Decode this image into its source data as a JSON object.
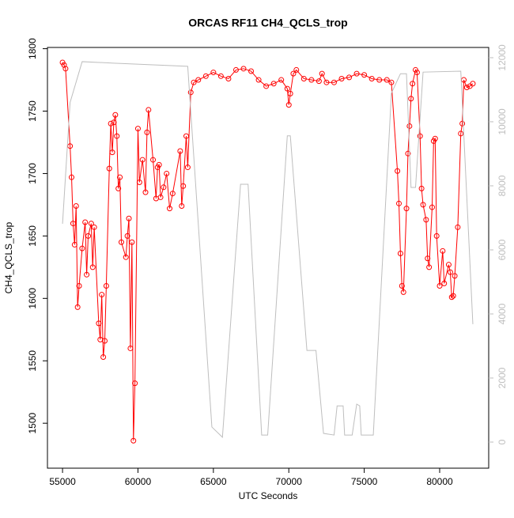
{
  "chart_data": {
    "type": "line",
    "title": "ORCAS RF11 CH4_QCLS_trop",
    "xlabel": "UTC Seconds",
    "ylabel": "CH4_QCLS_trop",
    "xlim": [
      54000,
      83250
    ],
    "xticks": [
      55000,
      60000,
      65000,
      70000,
      75000,
      80000
    ],
    "ylim": [
      1464,
      1801
    ],
    "yticks": [
      1500,
      1550,
      1600,
      1650,
      1700,
      1750,
      1800
    ],
    "y2lim": [
      -815,
      12320
    ],
    "y2ticks": [
      0,
      2000,
      4000,
      6000,
      8000,
      10000,
      12000
    ],
    "y2color": "#bebebe",
    "series": [
      {
        "color": "#ff0000",
        "marker": "circle",
        "x": [
          55000,
          55100,
          55200,
          55500,
          55600,
          55700,
          55800,
          55900,
          56000,
          56100,
          56300,
          56500,
          56600,
          56700,
          56900,
          57000,
          57100,
          57400,
          57500,
          57600,
          57700,
          57800,
          57900,
          58100,
          58200,
          58300,
          58400,
          58500,
          58600,
          58700,
          58800,
          58900,
          59200,
          59300,
          59400,
          59500,
          59600,
          59700,
          59800,
          60000,
          60100,
          60300,
          60500,
          60600,
          60700,
          61000,
          61200,
          61300,
          61400,
          61500,
          61700,
          61900,
          62100,
          62300,
          62800,
          62900,
          63000,
          63200,
          63300,
          63500,
          63700,
          64000,
          64500,
          65000,
          65500,
          66000,
          66500,
          67000,
          67500,
          68000,
          68500,
          69000,
          69500,
          69900,
          70000,
          70100,
          70300,
          70500,
          71000,
          71500,
          72000,
          72200,
          72500,
          73000,
          73500,
          74000,
          74500,
          75000,
          75500,
          76000,
          76500,
          76800,
          77200,
          77300,
          77400,
          77500,
          77600,
          77800,
          77900,
          78000,
          78100,
          78200,
          78400,
          78500,
          78700,
          78800,
          78900,
          79100,
          79200,
          79300,
          79500,
          79600,
          79700,
          79800,
          80000,
          80200,
          80300,
          80600,
          80700,
          80800,
          80900,
          81000,
          81200,
          81400,
          81500,
          81600,
          81800,
          82000,
          82200
        ],
        "values": [
          1789,
          1787,
          1784,
          1722,
          1697,
          1660,
          1643,
          1674,
          1593,
          1610,
          1640,
          1661,
          1619,
          1650,
          1660,
          1625,
          1657,
          1580,
          1567,
          1603,
          1553,
          1566,
          1610,
          1704,
          1740,
          1717,
          1741,
          1747,
          1730,
          1688,
          1697,
          1645,
          1633,
          1650,
          1664,
          1560,
          1645,
          1486,
          1532,
          1736,
          1693,
          1711,
          1685,
          1733,
          1751,
          1711,
          1680,
          1705,
          1707,
          1681,
          1689,
          1700,
          1672,
          1684,
          1718,
          1674,
          1690,
          1730,
          1705,
          1765,
          1773,
          1775,
          1778,
          1781,
          1778,
          1776,
          1783,
          1784,
          1782,
          1775,
          1770,
          1772,
          1775,
          1768,
          1755,
          1764,
          1780,
          1783,
          1776,
          1775,
          1774,
          1780,
          1773,
          1773,
          1776,
          1777,
          1780,
          1779,
          1776,
          1775,
          1775,
          1773,
          1702,
          1676,
          1636,
          1610,
          1605,
          1672,
          1716,
          1738,
          1760,
          1772,
          1783,
          1781,
          1730,
          1688,
          1675,
          1663,
          1632,
          1625,
          1673,
          1726,
          1728,
          1650,
          1610,
          1638,
          1612,
          1627,
          1621,
          1601,
          1602,
          1618,
          1657,
          1732,
          1740,
          1775,
          1769,
          1770,
          1772
        ]
      },
      {
        "color": "#bebebe",
        "axis": "y2",
        "x": [
          55000,
          55500,
          56300,
          58400,
          63300,
          64900,
          65600,
          66800,
          67300,
          68200,
          68600,
          69900,
          70100,
          71200,
          71800,
          72300,
          73000,
          73200,
          73600,
          73700,
          74200,
          74500,
          74700,
          74800,
          75600,
          76800,
          77400,
          77800,
          78100,
          78400,
          78900,
          81400,
          82200
        ],
        "values": [
          6815,
          10600,
          11877,
          11830,
          11730,
          470,
          150,
          8050,
          8050,
          220,
          220,
          9560,
          9560,
          2860,
          2860,
          270,
          220,
          1130,
          1130,
          220,
          220,
          1185,
          1130,
          220,
          220,
          10890,
          11500,
          11500,
          7950,
          7950,
          11550,
          11580,
          3680
        ]
      }
    ]
  }
}
